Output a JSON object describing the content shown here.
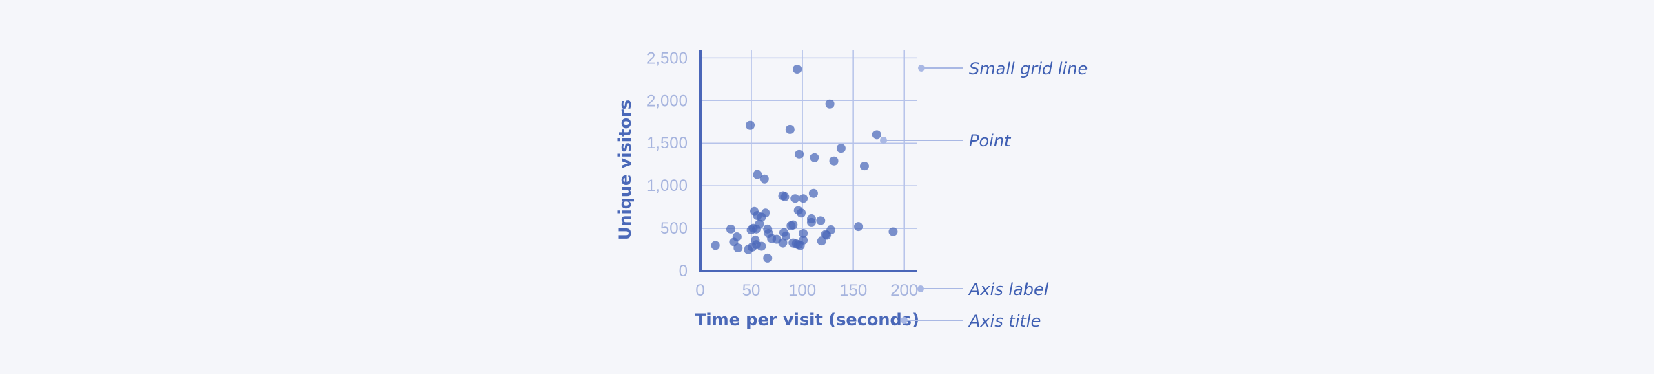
{
  "chart_data": {
    "type": "scatter",
    "xlabel": "Time per visit (seconds)",
    "ylabel": "Unique visitors",
    "xlim": [
      0,
      212
    ],
    "ylim": [
      0,
      2600
    ],
    "x_ticks": [
      0,
      50,
      100,
      150,
      200
    ],
    "x_tick_labels": [
      "0",
      "50",
      "100",
      "150",
      "200"
    ],
    "y_ticks": [
      0,
      500,
      1000,
      1500,
      2000,
      2500
    ],
    "y_tick_labels": [
      "0",
      "500",
      "1,000",
      "1,500",
      "2,000",
      "2,500"
    ],
    "grid": true,
    "colors": {
      "point": "#4a66b8",
      "grid": "#b6c3ea",
      "axis": "#4a66b8",
      "tick_label": "#a6b4de",
      "annotation": "#3f5fb3"
    },
    "points": [
      {
        "x": 95,
        "y": 2370
      },
      {
        "x": 127,
        "y": 1960
      },
      {
        "x": 49,
        "y": 1710
      },
      {
        "x": 88,
        "y": 1660
      },
      {
        "x": 173,
        "y": 1600
      },
      {
        "x": 138,
        "y": 1440
      },
      {
        "x": 97,
        "y": 1370
      },
      {
        "x": 112,
        "y": 1330
      },
      {
        "x": 131,
        "y": 1290
      },
      {
        "x": 161,
        "y": 1230
      },
      {
        "x": 56,
        "y": 1130
      },
      {
        "x": 63,
        "y": 1080
      },
      {
        "x": 111,
        "y": 910
      },
      {
        "x": 81,
        "y": 880
      },
      {
        "x": 83,
        "y": 870
      },
      {
        "x": 93,
        "y": 850
      },
      {
        "x": 101,
        "y": 850
      },
      {
        "x": 53,
        "y": 700
      },
      {
        "x": 96,
        "y": 710
      },
      {
        "x": 99,
        "y": 680
      },
      {
        "x": 64,
        "y": 680
      },
      {
        "x": 56,
        "y": 650
      },
      {
        "x": 60,
        "y": 630
      },
      {
        "x": 109,
        "y": 610
      },
      {
        "x": 118,
        "y": 590
      },
      {
        "x": 109,
        "y": 570
      },
      {
        "x": 58,
        "y": 550
      },
      {
        "x": 91,
        "y": 540
      },
      {
        "x": 89,
        "y": 530
      },
      {
        "x": 155,
        "y": 520
      },
      {
        "x": 52,
        "y": 500
      },
      {
        "x": 66,
        "y": 490
      },
      {
        "x": 50,
        "y": 480
      },
      {
        "x": 30,
        "y": 490
      },
      {
        "x": 55,
        "y": 490
      },
      {
        "x": 128,
        "y": 480
      },
      {
        "x": 189,
        "y": 460
      },
      {
        "x": 82,
        "y": 450
      },
      {
        "x": 101,
        "y": 440
      },
      {
        "x": 67,
        "y": 440
      },
      {
        "x": 123,
        "y": 430
      },
      {
        "x": 124,
        "y": 420
      },
      {
        "x": 84,
        "y": 410
      },
      {
        "x": 36,
        "y": 400
      },
      {
        "x": 70,
        "y": 380
      },
      {
        "x": 75,
        "y": 370
      },
      {
        "x": 54,
        "y": 360
      },
      {
        "x": 101,
        "y": 360
      },
      {
        "x": 119,
        "y": 350
      },
      {
        "x": 33,
        "y": 340
      },
      {
        "x": 91,
        "y": 330
      },
      {
        "x": 81,
        "y": 330
      },
      {
        "x": 94,
        "y": 320
      },
      {
        "x": 96,
        "y": 310
      },
      {
        "x": 55,
        "y": 310
      },
      {
        "x": 15,
        "y": 300
      },
      {
        "x": 98,
        "y": 300
      },
      {
        "x": 60,
        "y": 290
      },
      {
        "x": 51,
        "y": 280
      },
      {
        "x": 37,
        "y": 270
      },
      {
        "x": 47,
        "y": 250
      },
      {
        "x": 66,
        "y": 150
      }
    ],
    "annotations": [
      {
        "label": "Small grid line"
      },
      {
        "label": "Point"
      },
      {
        "label": "Axis label"
      },
      {
        "label": "Axis title"
      }
    ]
  }
}
